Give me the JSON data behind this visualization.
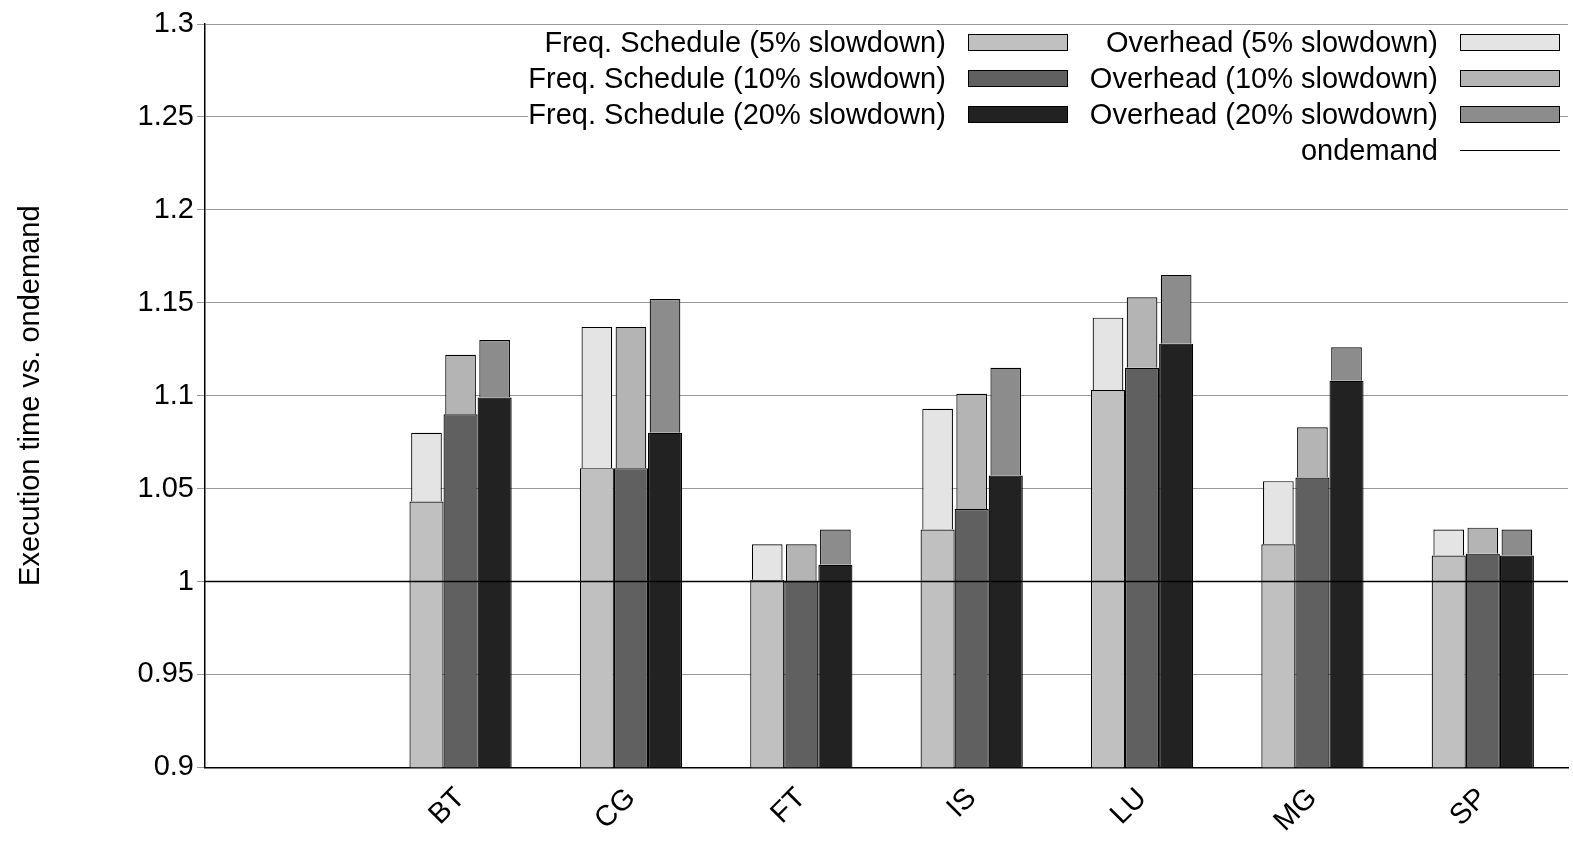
{
  "chart_data": {
    "type": "bar",
    "ylabel": "Execution time vs. ondemand",
    "categories": [
      null,
      "BT",
      "CG",
      "FT",
      "IS",
      "LU",
      "MG",
      "SP"
    ],
    "series": [
      {
        "name": "Freq. Schedule (5% slowdown)",
        "color": "#c0c0c0",
        "values": [
          null,
          1.043,
          1.061,
          1.001,
          1.028,
          1.103,
          1.02,
          1.014
        ]
      },
      {
        "name": "Overhead (5% slowdown)",
        "color": "#e4e4e4",
        "values": [
          null,
          0.037,
          0.076,
          0.019,
          0.065,
          0.039,
          0.034,
          0.014
        ],
        "base": [
          null,
          1.043,
          1.061,
          1.001,
          1.028,
          1.103,
          1.02,
          1.014
        ]
      },
      {
        "name": "Freq. Schedule (10% slowdown)",
        "color": "#606060",
        "values": [
          null,
          1.09,
          1.061,
          1.0,
          1.039,
          1.115,
          1.056,
          1.015
        ]
      },
      {
        "name": "Overhead (10% slowdown)",
        "color": "#b4b4b4",
        "values": [
          null,
          0.032,
          0.076,
          0.02,
          0.062,
          0.038,
          0.027,
          0.014
        ],
        "base": [
          null,
          1.09,
          1.061,
          1.0,
          1.039,
          1.115,
          1.056,
          1.015
        ]
      },
      {
        "name": "Freq. Schedule (20% slowdown)",
        "color": "#222222",
        "values": [
          null,
          1.099,
          1.08,
          1.009,
          1.057,
          1.128,
          1.108,
          1.014
        ]
      },
      {
        "name": "Overhead (20% slowdown)",
        "color": "#8c8c8c",
        "values": [
          null,
          0.031,
          0.072,
          0.019,
          0.058,
          0.037,
          0.018,
          0.014
        ],
        "base": [
          null,
          1.099,
          1.08,
          1.009,
          1.057,
          1.128,
          1.108,
          1.014
        ]
      }
    ],
    "ylim": [
      0.9,
      1.3
    ],
    "yticks": [
      0.9,
      0.95,
      1,
      1.05,
      1.1,
      1.15,
      1.2,
      1.25,
      1.3
    ],
    "ref_lines": [
      {
        "axis": "y",
        "value": 1,
        "label": "ondemand",
        "color": "#000000"
      }
    ],
    "grid": "y",
    "legend": "top right"
  }
}
